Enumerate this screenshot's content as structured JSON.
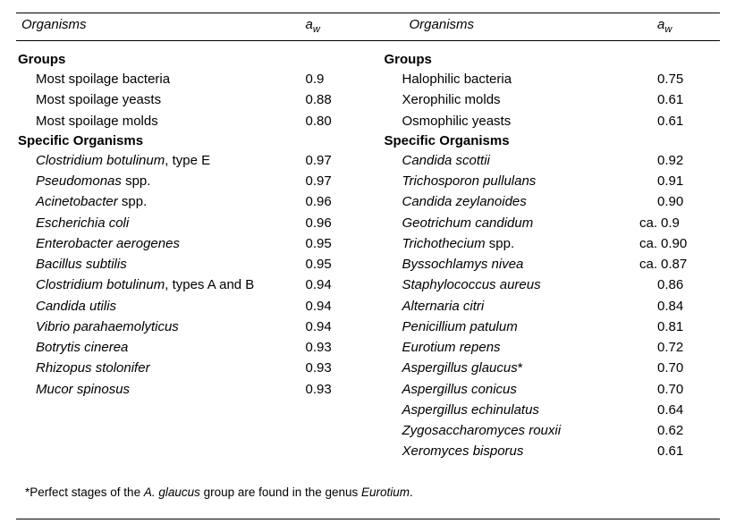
{
  "headers": {
    "organisms": "Organisms",
    "aw_html": "a<span class=\"aw-sub\">w</span>"
  },
  "left": {
    "sections": [
      {
        "title": "Groups",
        "rows": [
          {
            "name": "Most spoilage bacteria",
            "italic": false,
            "aw": "0.9"
          },
          {
            "name": "Most spoilage yeasts",
            "italic": false,
            "aw": "0.88"
          },
          {
            "name": "Most spoilage molds",
            "italic": false,
            "aw": "0.80"
          }
        ]
      },
      {
        "title": "Specific Organisms",
        "rows": [
          {
            "name_html": "<span class=\"italic\">Clostridium botulinum</span>, type E",
            "aw": "0.97"
          },
          {
            "name_html": "<span class=\"italic\">Pseudomonas</span> spp.",
            "aw": "0.97"
          },
          {
            "name_html": "<span class=\"italic\">Acinetobacter</span> spp.",
            "aw": "0.96"
          },
          {
            "name_html": "<span class=\"italic\">Escherichia coli</span>",
            "aw": "0.96"
          },
          {
            "name_html": "<span class=\"italic\">Enterobacter aerogenes</span>",
            "aw": "0.95"
          },
          {
            "name_html": "<span class=\"italic\">Bacillus subtilis</span>",
            "aw": "0.95"
          },
          {
            "name_html": "<span class=\"italic\">Clostridium botulinum</span>, types A and B",
            "aw": "0.94"
          },
          {
            "name_html": "<span class=\"italic\">Candida utilis</span>",
            "aw": "0.94"
          },
          {
            "name_html": "<span class=\"italic\">Vibrio parahaemolyticus</span>",
            "aw": "0.94"
          },
          {
            "name_html": "<span class=\"italic\">Botrytis cinerea</span>",
            "aw": "0.93"
          },
          {
            "name_html": "<span class=\"italic\">Rhizopus stolonifer</span>",
            "aw": "0.93"
          },
          {
            "name_html": "<span class=\"italic\">Mucor spinosus</span>",
            "aw": "0.93"
          }
        ]
      }
    ]
  },
  "right": {
    "sections": [
      {
        "title": "Groups",
        "rows": [
          {
            "name": "Halophilic bacteria",
            "italic": false,
            "aw": "0.75"
          },
          {
            "name": "Xerophilic molds",
            "italic": false,
            "aw": "0.61"
          },
          {
            "name": "Osmophilic yeasts",
            "italic": false,
            "aw": "0.61"
          }
        ]
      },
      {
        "title": "Specific Organisms",
        "rows": [
          {
            "name_html": "<span class=\"italic\">Candida scottii</span>",
            "aw": "0.92"
          },
          {
            "name_html": "<span class=\"italic\">Trichosporon pullulans</span>",
            "aw": "0.91"
          },
          {
            "name_html": "<span class=\"italic\">Candida zeylanoides</span>",
            "aw": "0.90"
          },
          {
            "name_html": "<span class=\"italic\">Geotrichum candidum</span>",
            "prefix": "ca.",
            "aw": "0.9"
          },
          {
            "name_html": "<span class=\"italic\">Trichothecium</span> spp.",
            "prefix": "ca.",
            "aw": "0.90"
          },
          {
            "name_html": "<span class=\"italic\">Byssochlamys nivea</span>",
            "prefix": "ca.",
            "aw": "0.87"
          },
          {
            "name_html": "<span class=\"italic\">Staphylococcus aureus</span>",
            "aw": "0.86"
          },
          {
            "name_html": "<span class=\"italic\">Alternaria citri</span>",
            "aw": "0.84"
          },
          {
            "name_html": "<span class=\"italic\">Penicillium patulum</span>",
            "aw": "0.81"
          },
          {
            "name_html": "<span class=\"italic\">Eurotium repens</span>",
            "aw": "0.72"
          },
          {
            "name_html": "<span class=\"italic\">Aspergillus glaucus</span>*",
            "aw": "0.70"
          },
          {
            "name_html": "<span class=\"italic\">Aspergillus conicus</span>",
            "aw": "0.70"
          },
          {
            "name_html": "<span class=\"italic\">Aspergillus echinulatus</span>",
            "aw": "0.64"
          },
          {
            "name_html": "<span class=\"italic\">Zygosaccharomyces rouxii</span>",
            "aw": "0.62"
          },
          {
            "name_html": "<span class=\"italic\">Xeromyces bisporus</span>",
            "aw": "0.61"
          }
        ]
      }
    ]
  },
  "footnote_html": "*Perfect stages of the <span class=\"italic\">A. glaucus</span> group are found in the genus <span class=\"italic\">Eurotium</span>."
}
